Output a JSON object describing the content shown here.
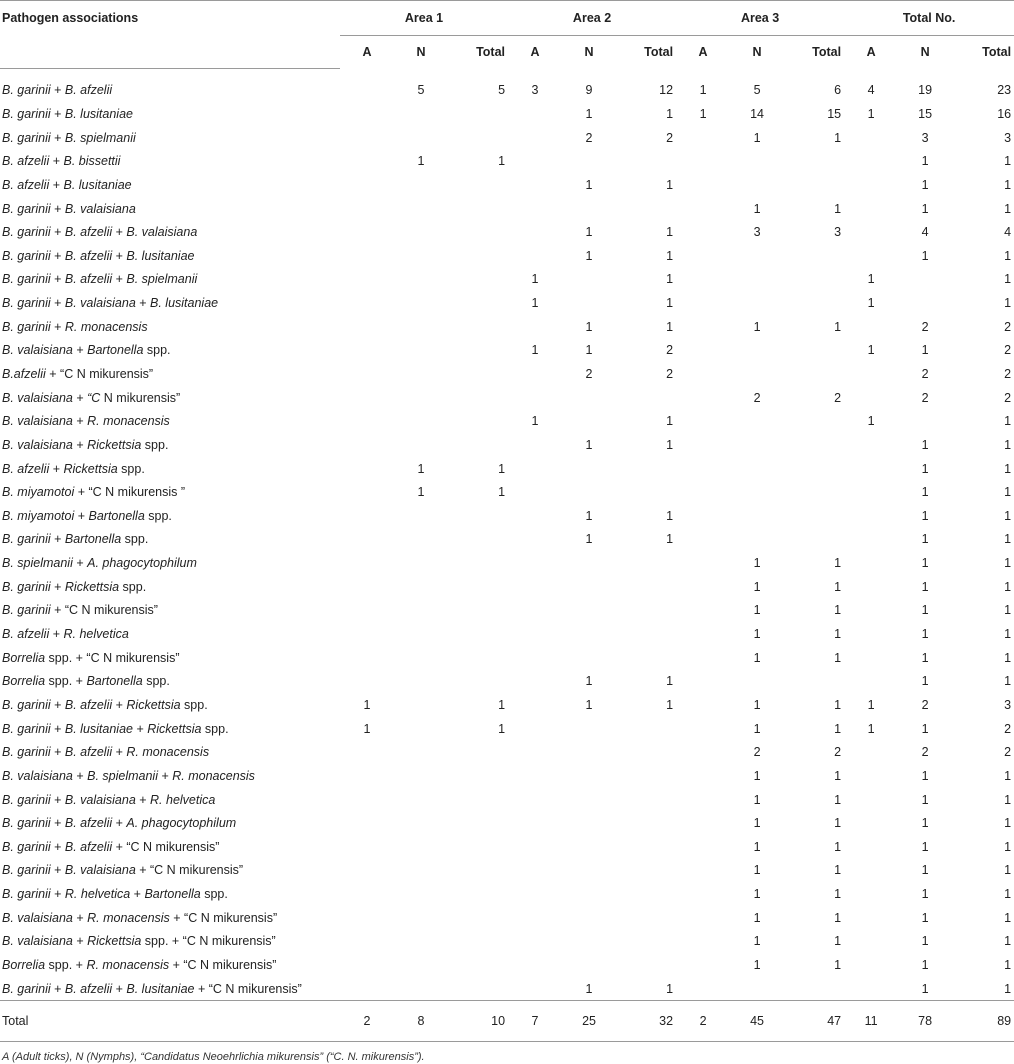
{
  "header": {
    "first_col": "Pathogen associations",
    "groups": [
      "Area 1",
      "Area 2",
      "Area 3",
      "Total No."
    ],
    "subcols": [
      "A",
      "N",
      "Total"
    ]
  },
  "rows": [
    {
      "label": [
        {
          "t": "B. garinii",
          "i": true
        },
        {
          "t": " + "
        },
        {
          "t": "B. afzelii",
          "i": true
        }
      ],
      "v": [
        "",
        "5",
        "5",
        "3",
        "9",
        "12",
        "1",
        "5",
        "6",
        "4",
        "19",
        "23"
      ]
    },
    {
      "label": [
        {
          "t": "B. garinii",
          "i": true
        },
        {
          "t": " + "
        },
        {
          "t": "B. lusitaniae",
          "i": true
        }
      ],
      "v": [
        "",
        "",
        "",
        "",
        "1",
        "1",
        "1",
        "14",
        "15",
        "1",
        "15",
        "16"
      ]
    },
    {
      "label": [
        {
          "t": "B. garinii",
          "i": true
        },
        {
          "t": " + "
        },
        {
          "t": "B. spielmanii",
          "i": true
        }
      ],
      "v": [
        "",
        "",
        "",
        "",
        "2",
        "2",
        "",
        "1",
        "1",
        "",
        "3",
        "3"
      ]
    },
    {
      "label": [
        {
          "t": "B. afzelii",
          "i": true
        },
        {
          "t": " + "
        },
        {
          "t": "B. bissettii",
          "i": true
        }
      ],
      "v": [
        "",
        "1",
        "1",
        "",
        "",
        "",
        "",
        "",
        "",
        "",
        "1",
        "1"
      ]
    },
    {
      "label": [
        {
          "t": "B. afzelii",
          "i": true
        },
        {
          "t": " + "
        },
        {
          "t": "B. lusitaniae",
          "i": true
        }
      ],
      "v": [
        "",
        "",
        "",
        "",
        "1",
        "1",
        "",
        "",
        "",
        "",
        "1",
        "1"
      ]
    },
    {
      "label": [
        {
          "t": "B. garinii",
          "i": true
        },
        {
          "t": " + "
        },
        {
          "t": "B. valaisiana",
          "i": true
        }
      ],
      "v": [
        "",
        "",
        "",
        "",
        "",
        "",
        "",
        "1",
        "1",
        "",
        "1",
        "1"
      ]
    },
    {
      "label": [
        {
          "t": "B. garinii",
          "i": true
        },
        {
          "t": " + "
        },
        {
          "t": "B. afzelii",
          "i": true
        },
        {
          "t": " + "
        },
        {
          "t": "B. valaisiana",
          "i": true
        }
      ],
      "v": [
        "",
        "",
        "",
        "",
        "1",
        "1",
        "",
        "3",
        "3",
        "",
        "4",
        "4"
      ]
    },
    {
      "label": [
        {
          "t": "B. garinii",
          "i": true
        },
        {
          "t": " + "
        },
        {
          "t": "B. afzelii",
          "i": true
        },
        {
          "t": " + "
        },
        {
          "t": "B. lusitaniae",
          "i": true
        }
      ],
      "v": [
        "",
        "",
        "",
        "",
        "1",
        "1",
        "",
        "",
        "",
        "",
        "1",
        "1"
      ]
    },
    {
      "label": [
        {
          "t": "B. garinii",
          "i": true
        },
        {
          "t": " + "
        },
        {
          "t": "B. afzelii",
          "i": true
        },
        {
          "t": " + "
        },
        {
          "t": "B. spielmanii",
          "i": true
        }
      ],
      "v": [
        "",
        "",
        "",
        "1",
        "",
        "1",
        "",
        "",
        "",
        "1",
        "",
        "1"
      ]
    },
    {
      "label": [
        {
          "t": "B. garinii",
          "i": true
        },
        {
          "t": " + "
        },
        {
          "t": "B. valaisiana",
          "i": true
        },
        {
          "t": " + "
        },
        {
          "t": "B. lusitaniae",
          "i": true
        }
      ],
      "v": [
        "",
        "",
        "",
        "1",
        "",
        "1",
        "",
        "",
        "",
        "1",
        "",
        "1"
      ]
    },
    {
      "label": [
        {
          "t": "B. garinii",
          "i": true
        },
        {
          "t": " + "
        },
        {
          "t": "R. monacensis",
          "i": true
        }
      ],
      "v": [
        "",
        "",
        "",
        "",
        "1",
        "1",
        "",
        "1",
        "1",
        "",
        "2",
        "2"
      ]
    },
    {
      "label": [
        {
          "t": "B. valaisiana",
          "i": true
        },
        {
          "t": " + "
        },
        {
          "t": "Bartonella",
          "i": true
        },
        {
          "t": " spp."
        }
      ],
      "v": [
        "",
        "",
        "",
        "1",
        "1",
        "2",
        "",
        "",
        "",
        "1",
        "1",
        "2"
      ]
    },
    {
      "label": [
        {
          "t": "B.afzelii",
          "i": true
        },
        {
          "t": " + “C N mikurensis”"
        }
      ],
      "v": [
        "",
        "",
        "",
        "",
        "2",
        "2",
        "",
        "",
        "",
        "",
        "2",
        "2"
      ]
    },
    {
      "label": [
        {
          "t": "B. valaisiana",
          "i": true
        },
        {
          "t": " + "
        },
        {
          "t": "“C",
          "i": true
        },
        {
          "t": " N mikurensis”"
        }
      ],
      "v": [
        "",
        "",
        "",
        "",
        "",
        "",
        "",
        "2",
        "2",
        "",
        "2",
        "2"
      ]
    },
    {
      "label": [
        {
          "t": "B. valaisiana",
          "i": true
        },
        {
          "t": " + "
        },
        {
          "t": "R. monacensis",
          "i": true
        }
      ],
      "v": [
        "",
        "",
        "",
        "1",
        "",
        "1",
        "",
        "",
        "",
        "1",
        "",
        "1"
      ]
    },
    {
      "label": [
        {
          "t": "B. valaisiana",
          "i": true
        },
        {
          "t": " + "
        },
        {
          "t": "Rickettsia",
          "i": true
        },
        {
          "t": " spp."
        }
      ],
      "v": [
        "",
        "",
        "",
        "",
        "1",
        "1",
        "",
        "",
        "",
        "",
        "1",
        "1"
      ]
    },
    {
      "label": [
        {
          "t": "B. afzelii",
          "i": true
        },
        {
          "t": " + "
        },
        {
          "t": "Rickettsia",
          "i": true
        },
        {
          "t": " spp."
        }
      ],
      "v": [
        "",
        "1",
        "1",
        "",
        "",
        "",
        "",
        "",
        "",
        "",
        "1",
        "1"
      ]
    },
    {
      "label": [
        {
          "t": "B. miyamotoi",
          "i": true
        },
        {
          "t": " + “C N mikurensis ”"
        }
      ],
      "v": [
        "",
        "1",
        "1",
        "",
        "",
        "",
        "",
        "",
        "",
        "",
        "1",
        "1"
      ]
    },
    {
      "label": [
        {
          "t": "B. miyamotoi",
          "i": true
        },
        {
          "t": " + "
        },
        {
          "t": "Bartonella",
          "i": true
        },
        {
          "t": " spp."
        }
      ],
      "v": [
        "",
        "",
        "",
        "",
        "1",
        "1",
        "",
        "",
        "",
        "",
        "1",
        "1"
      ]
    },
    {
      "label": [
        {
          "t": "B. garinii",
          "i": true
        },
        {
          "t": " + "
        },
        {
          "t": "Bartonella",
          "i": true
        },
        {
          "t": " spp."
        }
      ],
      "v": [
        "",
        "",
        "",
        "",
        "1",
        "1",
        "",
        "",
        "",
        "",
        "1",
        "1"
      ]
    },
    {
      "label": [
        {
          "t": "B. spielmanii",
          "i": true
        },
        {
          "t": " + "
        },
        {
          "t": "A. phagocytophilum",
          "i": true
        }
      ],
      "v": [
        "",
        "",
        "",
        "",
        "",
        "",
        "",
        "1",
        "1",
        "",
        "1",
        "1"
      ]
    },
    {
      "label": [
        {
          "t": "B. garinii",
          "i": true
        },
        {
          "t": " + "
        },
        {
          "t": "Rickettsia",
          "i": true
        },
        {
          "t": " spp."
        }
      ],
      "v": [
        "",
        "",
        "",
        "",
        "",
        "",
        "",
        "1",
        "1",
        "",
        "1",
        "1"
      ]
    },
    {
      "label": [
        {
          "t": "B. garinii",
          "i": true
        },
        {
          "t": " + “C N mikurensis”"
        }
      ],
      "v": [
        "",
        "",
        "",
        "",
        "",
        "",
        "",
        "1",
        "1",
        "",
        "1",
        "1"
      ]
    },
    {
      "label": [
        {
          "t": "B. afzelii",
          "i": true
        },
        {
          "t": " + "
        },
        {
          "t": "R. helvetica",
          "i": true
        }
      ],
      "v": [
        "",
        "",
        "",
        "",
        "",
        "",
        "",
        "1",
        "1",
        "",
        "1",
        "1"
      ]
    },
    {
      "label": [
        {
          "t": "Borrelia",
          "i": true
        },
        {
          "t": " spp. + “C N mikurensis”"
        }
      ],
      "v": [
        "",
        "",
        "",
        "",
        "",
        "",
        "",
        "1",
        "1",
        "",
        "1",
        "1"
      ]
    },
    {
      "label": [
        {
          "t": "Borrelia",
          "i": true
        },
        {
          "t": " spp. + "
        },
        {
          "t": "Bartonella",
          "i": true
        },
        {
          "t": " spp."
        }
      ],
      "v": [
        "",
        "",
        "",
        "",
        "1",
        "1",
        "",
        "",
        "",
        "",
        "1",
        "1"
      ]
    },
    {
      "label": [
        {
          "t": "B. garinii",
          "i": true
        },
        {
          "t": " + "
        },
        {
          "t": "B. afzelii",
          "i": true
        },
        {
          "t": " + "
        },
        {
          "t": "Rickettsia",
          "i": true
        },
        {
          "t": " spp."
        }
      ],
      "v": [
        "1",
        "",
        "1",
        "",
        "1",
        "1",
        "",
        "1",
        "1",
        "1",
        "2",
        "3"
      ]
    },
    {
      "label": [
        {
          "t": "B. garinii",
          "i": true
        },
        {
          "t": " + "
        },
        {
          "t": "B. lusitaniae",
          "i": true
        },
        {
          "t": " + "
        },
        {
          "t": "Rickettsia",
          "i": true
        },
        {
          "t": " spp."
        }
      ],
      "v": [
        "1",
        "",
        "1",
        "",
        "",
        "",
        "",
        "1",
        "1",
        "1",
        "1",
        "2"
      ]
    },
    {
      "label": [
        {
          "t": "B. garinii",
          "i": true
        },
        {
          "t": " + "
        },
        {
          "t": "B. afzelii",
          "i": true
        },
        {
          "t": " + "
        },
        {
          "t": "R. monacensis",
          "i": true
        }
      ],
      "v": [
        "",
        "",
        "",
        "",
        "",
        "",
        "",
        "2",
        "2",
        "",
        "2",
        "2"
      ]
    },
    {
      "label": [
        {
          "t": "B. valaisiana",
          "i": true
        },
        {
          "t": " + "
        },
        {
          "t": "B. spielmanii",
          "i": true
        },
        {
          "t": " + "
        },
        {
          "t": "R. monacensis",
          "i": true
        }
      ],
      "v": [
        "",
        "",
        "",
        "",
        "",
        "",
        "",
        "1",
        "1",
        "",
        "1",
        "1"
      ]
    },
    {
      "label": [
        {
          "t": "B. garinii",
          "i": true
        },
        {
          "t": " + "
        },
        {
          "t": "B. valaisiana",
          "i": true
        },
        {
          "t": " + "
        },
        {
          "t": "R. helvetica",
          "i": true
        }
      ],
      "v": [
        "",
        "",
        "",
        "",
        "",
        "",
        "",
        "1",
        "1",
        "",
        "1",
        "1"
      ]
    },
    {
      "label": [
        {
          "t": "B. garinii",
          "i": true
        },
        {
          "t": " + "
        },
        {
          "t": "B. afzelii",
          "i": true
        },
        {
          "t": " + "
        },
        {
          "t": "A. phagocytophilum",
          "i": true
        }
      ],
      "v": [
        "",
        "",
        "",
        "",
        "",
        "",
        "",
        "1",
        "1",
        "",
        "1",
        "1"
      ]
    },
    {
      "label": [
        {
          "t": "B. garinii",
          "i": true
        },
        {
          "t": " + "
        },
        {
          "t": "B. afzelii",
          "i": true
        },
        {
          "t": " + “C N mikurensis”"
        }
      ],
      "v": [
        "",
        "",
        "",
        "",
        "",
        "",
        "",
        "1",
        "1",
        "",
        "1",
        "1"
      ]
    },
    {
      "label": [
        {
          "t": "B. garinii",
          "i": true
        },
        {
          "t": " + "
        },
        {
          "t": "B. valaisiana",
          "i": true
        },
        {
          "t": " + “C N mikurensis”"
        }
      ],
      "v": [
        "",
        "",
        "",
        "",
        "",
        "",
        "",
        "1",
        "1",
        "",
        "1",
        "1"
      ]
    },
    {
      "label": [
        {
          "t": "B. garinii",
          "i": true
        },
        {
          "t": " + "
        },
        {
          "t": "R. helvetica",
          "i": true
        },
        {
          "t": " + "
        },
        {
          "t": "Bartonella",
          "i": true
        },
        {
          "t": " spp."
        }
      ],
      "v": [
        "",
        "",
        "",
        "",
        "",
        "",
        "",
        "1",
        "1",
        "",
        "1",
        "1"
      ]
    },
    {
      "label": [
        {
          "t": "B. valaisiana",
          "i": true
        },
        {
          "t": " + "
        },
        {
          "t": "R. monacensis",
          "i": true
        },
        {
          "t": " + “C N mikurensis”"
        }
      ],
      "v": [
        "",
        "",
        "",
        "",
        "",
        "",
        "",
        "1",
        "1",
        "",
        "1",
        "1"
      ]
    },
    {
      "label": [
        {
          "t": "B. valaisiana",
          "i": true
        },
        {
          "t": " + "
        },
        {
          "t": "Rickettsia",
          "i": true
        },
        {
          "t": " spp. + “C N mikurensis”"
        }
      ],
      "v": [
        "",
        "",
        "",
        "",
        "",
        "",
        "",
        "1",
        "1",
        "",
        "1",
        "1"
      ]
    },
    {
      "label": [
        {
          "t": "Borrelia",
          "i": true
        },
        {
          "t": " spp. + "
        },
        {
          "t": "R. monacensis",
          "i": true
        },
        {
          "t": " + “C N mikurensis”"
        }
      ],
      "v": [
        "",
        "",
        "",
        "",
        "",
        "",
        "",
        "1",
        "1",
        "",
        "1",
        "1"
      ]
    },
    {
      "label": [
        {
          "t": "B. garinii",
          "i": true
        },
        {
          "t": " + "
        },
        {
          "t": "B. afzelii",
          "i": true
        },
        {
          "t": " + "
        },
        {
          "t": "B. lusitaniae",
          "i": true
        },
        {
          "t": " + “C N mikurensis”"
        }
      ],
      "v": [
        "",
        "",
        "",
        "",
        "1",
        "1",
        "",
        "",
        "",
        "",
        "1",
        "1"
      ]
    }
  ],
  "total_row": {
    "label": "Total",
    "v": [
      "2",
      "8",
      "10",
      "7",
      "25",
      "32",
      "2",
      "45",
      "47",
      "11",
      "78",
      "89"
    ]
  },
  "footnote": "A (Adult ticks), N (Nymphs), “Candidatus Neoehrlichia mikurensis” (“C. N. mikurensis”)."
}
